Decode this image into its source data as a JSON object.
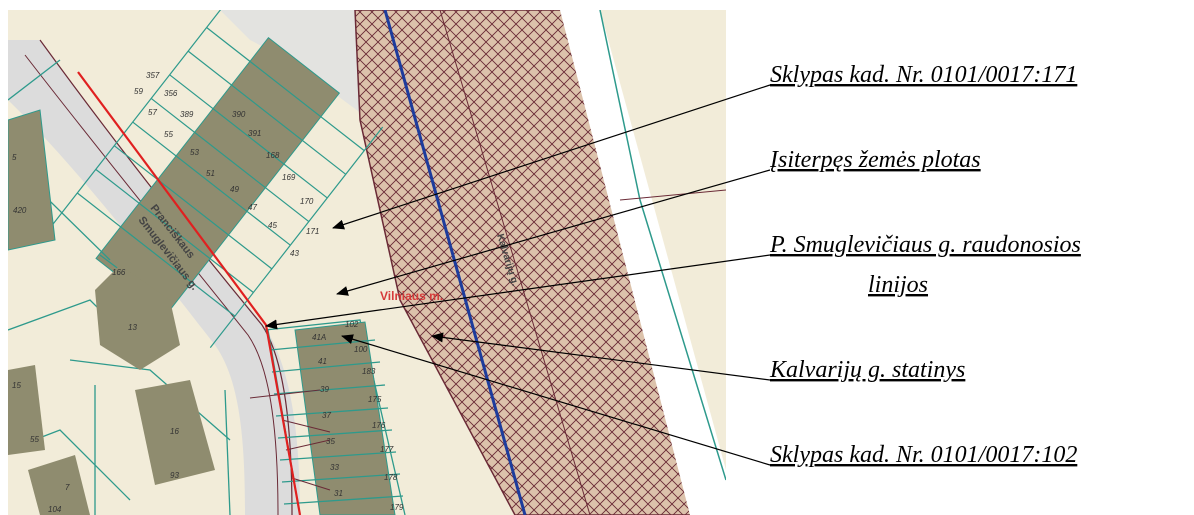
{
  "callouts": {
    "parcel_171": "Sklypas kad. Nr. 0101/0017:171",
    "interposed_area": "Įsiterpęs žemės plotas",
    "red_lines_line1": "P. Smuglevičiaus g. raudonosios",
    "red_lines_line2": "linijos",
    "kalvariju_structure": "Kalvarijų g. statinys",
    "parcel_102": "Sklypas kad. Nr. 0101/0017:102"
  },
  "map": {
    "street_name_line1": "Pranciškaus",
    "street_name_line2": "Smuglevičiaus g.",
    "kalvariju_street": "Kalvarijų g.",
    "city_label": "Vilniaus m.",
    "upper_parcels": [
      "357",
      "356",
      "389",
      "390",
      "391",
      "168",
      "169",
      "170",
      "171",
      "59",
      "57",
      "55",
      "53",
      "51",
      "49",
      "47",
      "45",
      "43"
    ],
    "lower_parcels": [
      "102",
      "100",
      "183",
      "175",
      "176",
      "177",
      "178",
      "179",
      "41A",
      "41",
      "39",
      "37",
      "35",
      "33",
      "31"
    ],
    "other_labels": [
      "420",
      "166",
      "13",
      "16",
      "93",
      "55",
      "7",
      "104",
      "5",
      "15"
    ]
  },
  "colors": {
    "background": "#f2ecd9",
    "road": "#dfdfdf",
    "building": "#8f8c6f",
    "parcel_line": "#2e9a8c",
    "red_line": "#e02020",
    "hatch": "#6a2a36",
    "axis_line": "#1d3c9c"
  }
}
